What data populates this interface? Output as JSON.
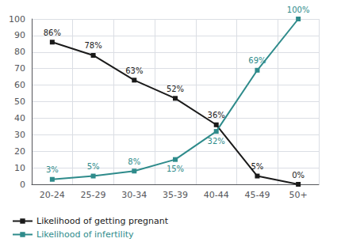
{
  "chart_data": {
    "type": "line",
    "categories": [
      "20-24",
      "25-29",
      "30-34",
      "35-39",
      "40-44",
      "45-49",
      "50+"
    ],
    "series": [
      {
        "name": "Likelihood of getting pregnant",
        "color": "#1a1a1a",
        "marker": "square",
        "values": [
          86,
          78,
          63,
          52,
          36,
          5,
          0
        ],
        "value_labels": [
          "86%",
          "78%",
          "63%",
          "52%",
          "36%",
          "5%",
          "0%"
        ]
      },
      {
        "name": "Likelihood of infertility",
        "color": "#2e8b8b",
        "marker": "square",
        "values": [
          3,
          5,
          8,
          15,
          32,
          69,
          100
        ],
        "value_labels": [
          "3%",
          "5%",
          "8%",
          "15%",
          "32%",
          "69%",
          "100%"
        ]
      }
    ],
    "ylim": [
      0,
      100
    ],
    "yticks": [
      0,
      10,
      20,
      30,
      40,
      50,
      60,
      70,
      80,
      90,
      100
    ],
    "grid": true,
    "legend": "lower left",
    "data_labels": true
  }
}
